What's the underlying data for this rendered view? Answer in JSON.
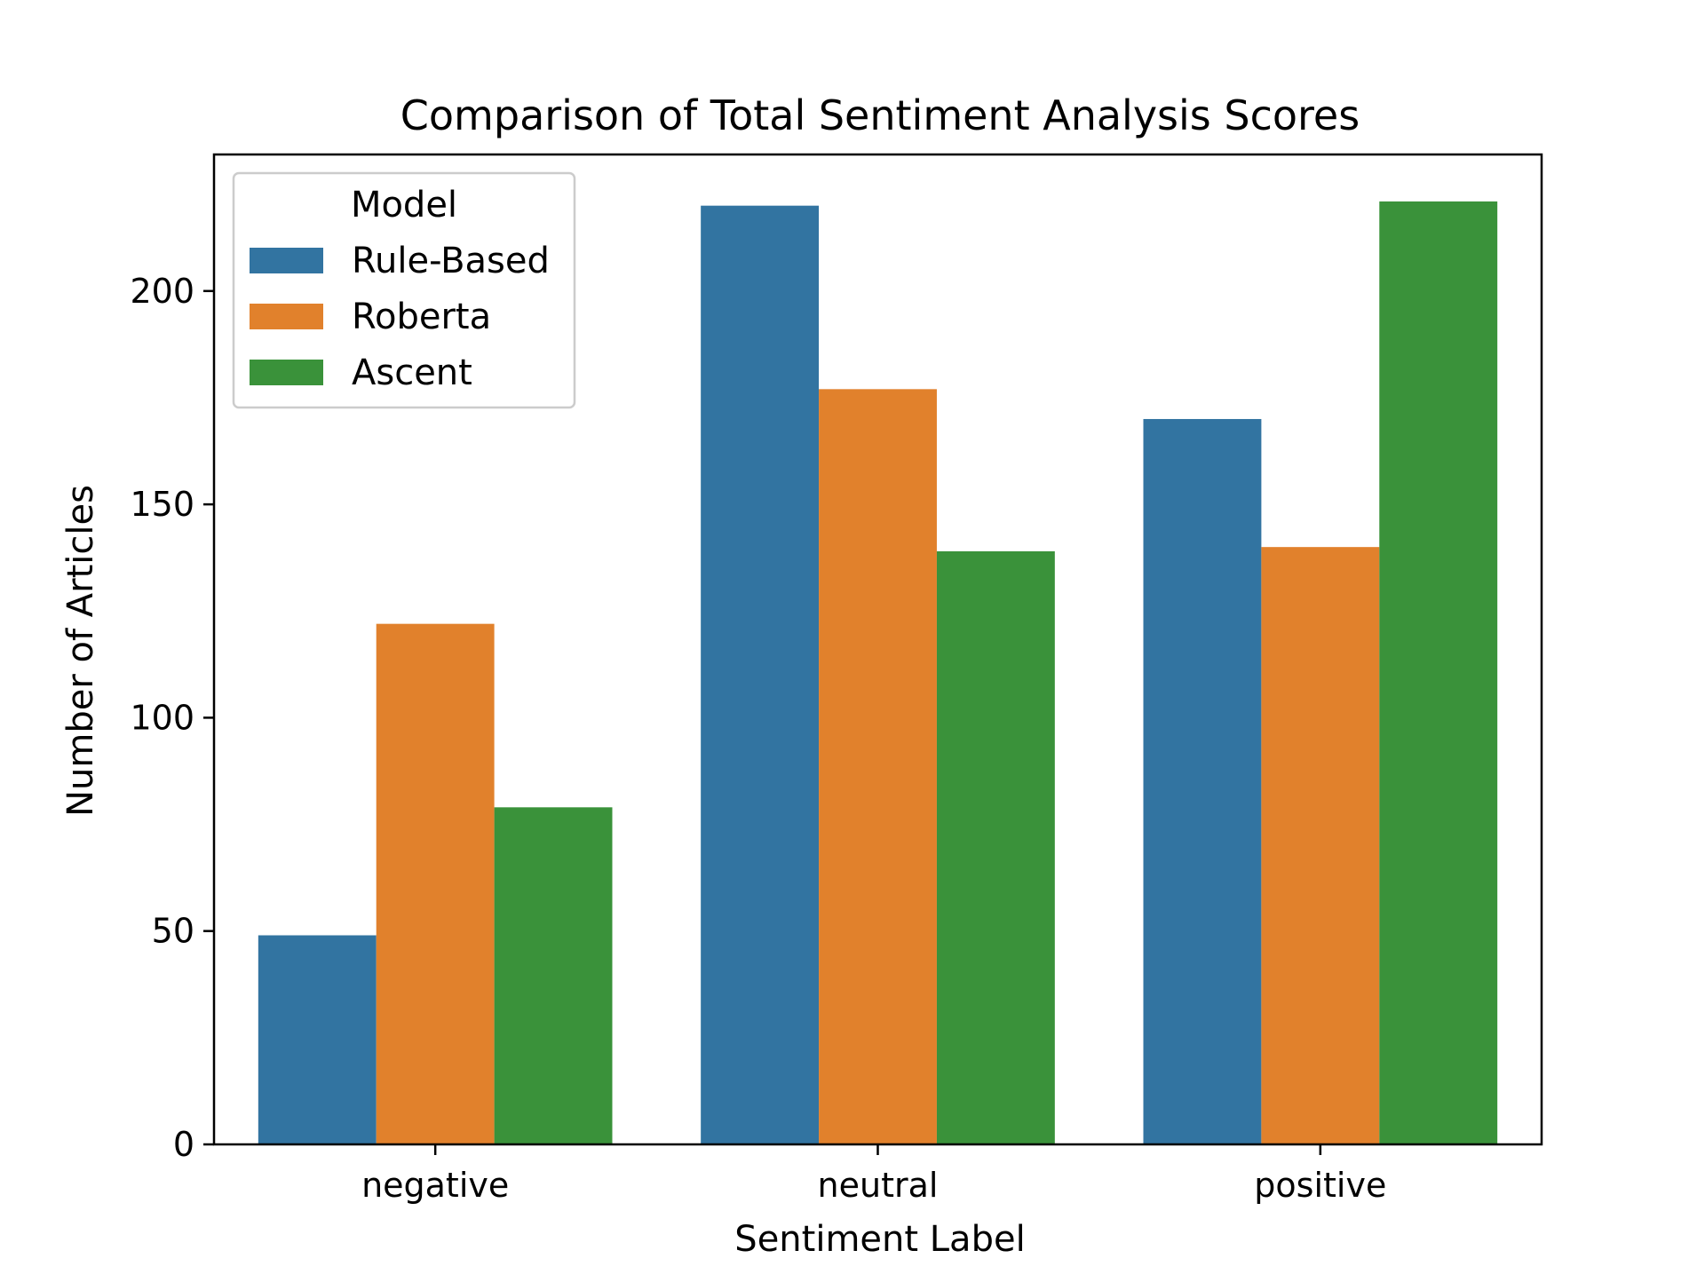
{
  "chart_data": {
    "type": "bar",
    "title": "Comparison of Total Sentiment Analysis Scores",
    "xlabel": "Sentiment Label",
    "ylabel": "Number of Articles",
    "categories": [
      "negative",
      "neutral",
      "positive"
    ],
    "series": [
      {
        "name": "Rule-Based",
        "color": "#3274a1",
        "values": [
          49,
          220,
          170
        ]
      },
      {
        "name": "Roberta",
        "color": "#e1812c",
        "values": [
          122,
          177,
          140
        ]
      },
      {
        "name": "Ascent",
        "color": "#3a923a",
        "values": [
          79,
          139,
          221
        ]
      }
    ],
    "ylim": [
      0,
      232
    ],
    "yticks": [
      0,
      50,
      100,
      150,
      200
    ],
    "grid": false,
    "legend": {
      "title": "Model",
      "placement": "top-left"
    }
  }
}
